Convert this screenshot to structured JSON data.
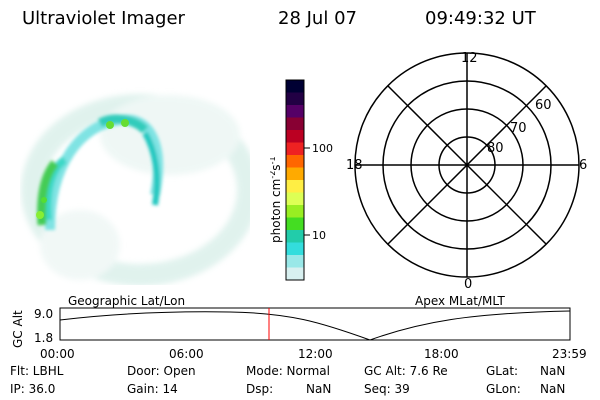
{
  "header": {
    "title": "Ultraviolet Imager",
    "date": "28 Jul 07",
    "time": "09:49:32 UT"
  },
  "colorbar": {
    "unit_label": "photon cm",
    "unit_exp1": "-2",
    "unit_s": "s",
    "unit_exp2": "-1",
    "tick_labels": [
      "100",
      "10"
    ],
    "colors": [
      "#000033",
      "#220044",
      "#550066",
      "#880033",
      "#bb0022",
      "#ee2222",
      "#ff6600",
      "#ffaa00",
      "#ffee44",
      "#ddff55",
      "#99ee22",
      "#44dd22",
      "#22ccaa",
      "#33dddd",
      "#99e8e8",
      "#d8f0f0"
    ]
  },
  "polar": {
    "labels_mlt": {
      "top": "12",
      "bottom": "0",
      "left": "18",
      "right": "6"
    },
    "labels_lat": [
      "60",
      "70",
      "80"
    ]
  },
  "timeline": {
    "left_title": "Geographic Lat/Lon",
    "right_title": "Apex MLat/MLT",
    "axis_label": "GC Alt",
    "y_ticks": [
      "9.0",
      "1.8"
    ],
    "x_ticks": [
      "00:00",
      "06:00",
      "12:00",
      "18:00",
      "23:59"
    ]
  },
  "status": {
    "flt": "Flt: LBHL",
    "ip": "IP: 36.0",
    "door": "Door: Open",
    "gain": "Gain: 14",
    "mode": "Mode: Normal",
    "dsp": "Dsp:",
    "dsp_val": "NaN",
    "gcalt": "GC Alt: 7.6 Re",
    "seq": "Seq: 39",
    "glat": "GLat:",
    "glat_val": "NaN",
    "glon": "GLon:",
    "glon_val": "NaN"
  },
  "colors": {
    "marker": "#ff0000"
  }
}
